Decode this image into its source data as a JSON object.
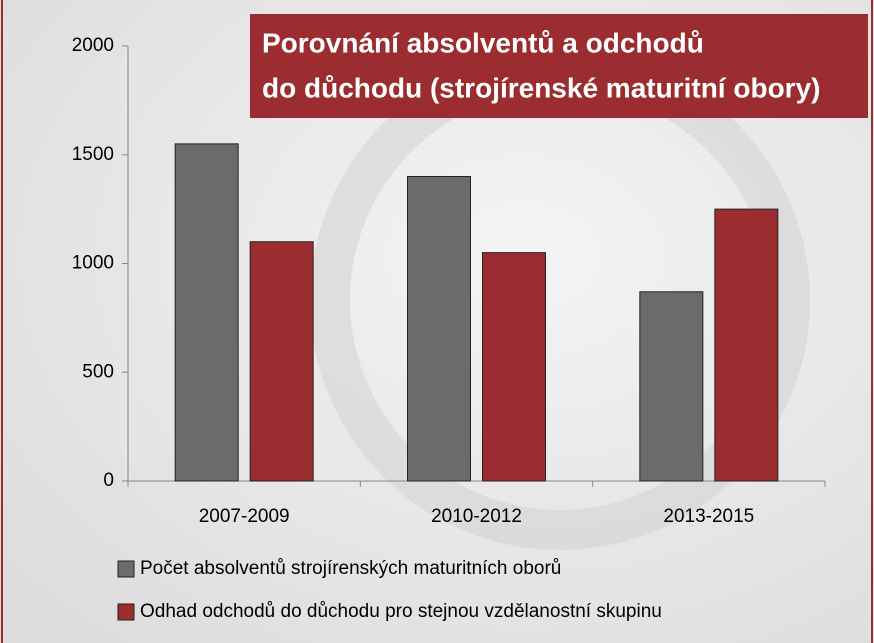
{
  "chart_data": {
    "type": "bar",
    "title": [
      "Porovnání absolventů a odchodů",
      "do důchodu (strojírenské maturitní obory)"
    ],
    "categories": [
      "2007-2009",
      "2010-2012",
      "2013-2015"
    ],
    "series": [
      {
        "name": "Počet absolventů strojírenských maturitních oborů",
        "color": "#6b6b6b",
        "values": [
          1550,
          1400,
          870
        ]
      },
      {
        "name": "Odhad odchodů do důchodu pro stejnou vzdělanostní skupinu",
        "color": "#9b2d30",
        "values": [
          1100,
          1050,
          1250
        ]
      }
    ],
    "ylim": [
      0,
      2000
    ],
    "yticks": [
      0,
      500,
      1000,
      1500,
      2000
    ],
    "grid": false
  }
}
